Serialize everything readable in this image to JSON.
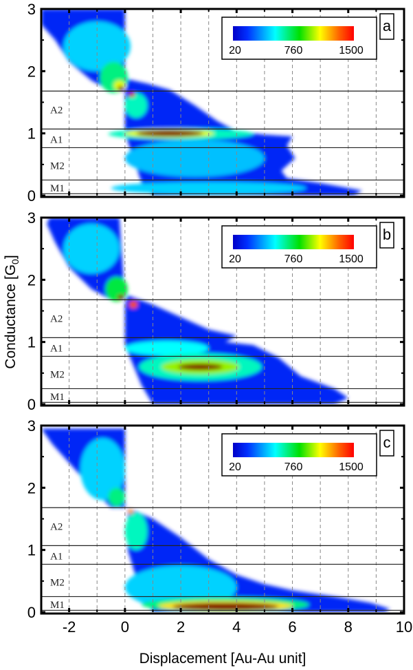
{
  "chart_data": {
    "type": "heatmap",
    "xlabel": "Displacement [Au-Au unit]",
    "ylabel": "Conductance [G0]",
    "ylabel_main": "Conductance [G",
    "ylabel_sub": "0",
    "ylabel_end": "]",
    "xlim": [
      -3,
      10
    ],
    "ylim": [
      0,
      3
    ],
    "xticks": [
      "-2",
      "0",
      "2",
      "4",
      "6",
      "8",
      "10"
    ],
    "xtick_values": [
      -2,
      0,
      2,
      4,
      6,
      8,
      10
    ],
    "yticks": [
      "0",
      "1",
      "2",
      "3"
    ],
    "ytick_values": [
      0,
      1,
      2,
      3
    ],
    "grid": "vertical dashed at integer x",
    "colorbar": {
      "min_label": "20",
      "mid_label": "760",
      "max_label": "1500",
      "min": 20,
      "max": 1500,
      "colormap": "jet",
      "placement": "top-right"
    },
    "region_lines": [
      1.68,
      1.07,
      0.77,
      0.25,
      0.03
    ],
    "regions": [
      {
        "label": "A2",
        "y": 1.38
      },
      {
        "label": "A1",
        "y": 0.9
      },
      {
        "label": "M2",
        "y": 0.48
      },
      {
        "label": "M1",
        "y": 0.12
      }
    ],
    "panels": [
      {
        "label": "a",
        "support": [
          [
            [
              -3,
              3
            ],
            [
              0,
              3
            ],
            [
              0,
              1.68
            ],
            [
              -0.5,
              1.68
            ],
            [
              -1.2,
              1.85
            ],
            [
              -2,
              2.15
            ],
            [
              -2.5,
              2.5
            ],
            [
              -3,
              2.75
            ]
          ],
          [
            [
              0.1,
              1.87
            ],
            [
              0.8,
              1.8
            ],
            [
              1.6,
              1.7
            ],
            [
              2.5,
              1.45
            ],
            [
              3.3,
              1.2
            ],
            [
              4,
              1.03
            ],
            [
              5,
              0.98
            ],
            [
              6,
              0.95
            ],
            [
              5.8,
              0.8
            ],
            [
              6.1,
              0.6
            ],
            [
              5.6,
              0.4
            ],
            [
              5.8,
              0.28
            ],
            [
              7,
              0.2
            ],
            [
              8.5,
              0.08
            ],
            [
              8.2,
              0
            ],
            [
              1,
              0
            ],
            [
              0.6,
              0.2
            ],
            [
              0.3,
              0.6
            ],
            [
              0,
              1.0
            ],
            [
              0,
              1.6
            ]
          ]
        ],
        "blobs": [
          {
            "x": -1,
            "y": 2.4,
            "rx": 1.2,
            "ry": 0.4,
            "v": 0.3
          },
          {
            "x": -0.4,
            "y": 1.9,
            "rx": 0.5,
            "ry": 0.25,
            "v": 0.45
          },
          {
            "x": -0.2,
            "y": 1.77,
            "rx": 0.2,
            "ry": 0.08,
            "v": 0.7
          },
          {
            "x": -0.15,
            "y": 1.72,
            "rx": 0.1,
            "ry": 0.04,
            "v": 1.0
          },
          {
            "x": 0.4,
            "y": 1.45,
            "rx": 0.4,
            "ry": 0.2,
            "v": 0.4
          },
          {
            "x": 0.25,
            "y": 1.62,
            "rx": 0.1,
            "ry": 0.04,
            "v": 0.95
          },
          {
            "x": 2.5,
            "y": 0.6,
            "rx": 2.5,
            "ry": 0.3,
            "v": 0.28
          },
          {
            "x": 3,
            "y": 0.12,
            "rx": 3.5,
            "ry": 0.1,
            "v": 0.3
          },
          {
            "x": 2,
            "y": 0.99,
            "rx": 2.6,
            "ry": 0.09,
            "v": 0.4
          },
          {
            "x": 1.6,
            "y": 1.0,
            "rx": 1.6,
            "ry": 0.07,
            "v": 0.7
          },
          {
            "x": 1.6,
            "y": 1.0,
            "rx": 1.2,
            "ry": 0.05,
            "v": 1.0
          }
        ]
      },
      {
        "label": "b",
        "support": [
          [
            [
              -2.7,
              3
            ],
            [
              -0.2,
              3
            ],
            [
              0,
              1.68
            ],
            [
              -0.5,
              1.68
            ],
            [
              -1.2,
              1.85
            ],
            [
              -2,
              2.2
            ],
            [
              -2.5,
              2.6
            ],
            [
              -2.8,
              2.9
            ]
          ],
          [
            [
              0.1,
              1.75
            ],
            [
              1,
              1.6
            ],
            [
              2,
              1.4
            ],
            [
              3,
              1.2
            ],
            [
              4,
              1.1
            ],
            [
              3.6,
              1.0
            ],
            [
              4.6,
              0.95
            ],
            [
              5.5,
              0.75
            ],
            [
              6.3,
              0.45
            ],
            [
              7.5,
              0.25
            ],
            [
              8,
              0.1
            ],
            [
              7.5,
              0
            ],
            [
              1,
              0
            ],
            [
              0.6,
              0.3
            ],
            [
              0,
              0.95
            ],
            [
              0,
              1.6
            ]
          ]
        ],
        "blobs": [
          {
            "x": -1.2,
            "y": 2.5,
            "rx": 1,
            "ry": 0.4,
            "v": 0.3
          },
          {
            "x": -0.3,
            "y": 1.85,
            "rx": 0.4,
            "ry": 0.2,
            "v": 0.5
          },
          {
            "x": -0.15,
            "y": 1.72,
            "rx": 0.12,
            "ry": 0.04,
            "v": 1.0
          },
          {
            "x": 0.3,
            "y": 1.6,
            "rx": 0.15,
            "ry": 0.06,
            "v": 0.9
          },
          {
            "x": 1.5,
            "y": 0.9,
            "rx": 1.5,
            "ry": 0.12,
            "v": 0.35
          },
          {
            "x": 2.7,
            "y": 0.6,
            "rx": 2.2,
            "ry": 0.22,
            "v": 0.4
          },
          {
            "x": 2.7,
            "y": 0.6,
            "rx": 1.4,
            "ry": 0.12,
            "v": 0.65
          },
          {
            "x": 2.7,
            "y": 0.6,
            "rx": 0.8,
            "ry": 0.05,
            "v": 1.0
          }
        ]
      },
      {
        "label": "c",
        "support": [
          [
            [
              -3,
              2.95
            ],
            [
              0,
              2.95
            ],
            [
              0,
              1.68
            ],
            [
              -0.5,
              1.68
            ],
            [
              -1.2,
              2.0
            ],
            [
              -2,
              2.4
            ],
            [
              -2.6,
              2.7
            ]
          ],
          [
            [
              0.1,
              1.68
            ],
            [
              1,
              1.5
            ],
            [
              2,
              1.2
            ],
            [
              3,
              0.85
            ],
            [
              4,
              0.6
            ],
            [
              5,
              0.45
            ],
            [
              6,
              0.35
            ],
            [
              7.5,
              0.25
            ],
            [
              8.8,
              0.15
            ],
            [
              9.5,
              0.05
            ],
            [
              9.3,
              0
            ],
            [
              1,
              0
            ],
            [
              0.5,
              0.4
            ],
            [
              0.1,
              1.0
            ]
          ]
        ],
        "blobs": [
          {
            "x": -0.8,
            "y": 2.3,
            "rx": 0.8,
            "ry": 0.5,
            "v": 0.3
          },
          {
            "x": -0.3,
            "y": 1.85,
            "rx": 0.3,
            "ry": 0.15,
            "v": 0.45
          },
          {
            "x": 0.4,
            "y": 1.3,
            "rx": 0.4,
            "ry": 0.3,
            "v": 0.4
          },
          {
            "x": 0.2,
            "y": 1.62,
            "rx": 0.1,
            "ry": 0.04,
            "v": 0.8
          },
          {
            "x": 2,
            "y": 0.4,
            "rx": 2,
            "ry": 0.35,
            "v": 0.3
          },
          {
            "x": 3.6,
            "y": 0.12,
            "rx": 3,
            "ry": 0.12,
            "v": 0.45
          },
          {
            "x": 3.6,
            "y": 0.1,
            "rx": 2.4,
            "ry": 0.08,
            "v": 0.75
          },
          {
            "x": 3.6,
            "y": 0.09,
            "rx": 1.9,
            "ry": 0.06,
            "v": 1.0
          }
        ]
      }
    ]
  }
}
